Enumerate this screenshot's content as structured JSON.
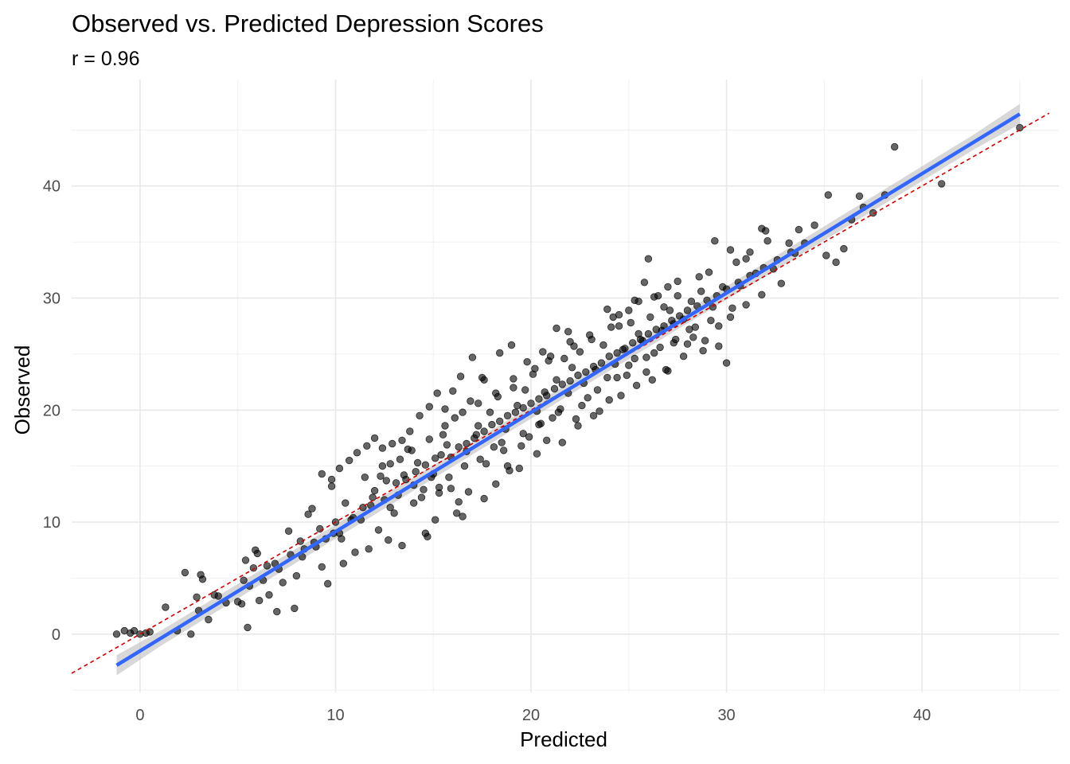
{
  "chart_data": {
    "type": "scatter",
    "title": "Observed vs. Predicted Depression Scores",
    "subtitle": "r = 0.96",
    "xlabel": "Predicted",
    "ylabel": "Observed",
    "xlim": [
      -3.5,
      47
    ],
    "ylim": [
      -5.2,
      49.5
    ],
    "x_ticks": [
      0,
      10,
      20,
      30,
      40
    ],
    "y_ticks": [
      0,
      10,
      20,
      30,
      40
    ],
    "grid": true,
    "point_color": "#000000",
    "point_opacity": 0.6,
    "fit_line": {
      "color": "#3366FF",
      "ribbon_color": "#BEBEBE",
      "intercept": -1.5,
      "slope": 1.065
    },
    "reference_line": {
      "color": "#CC0000",
      "style": "dashed",
      "intercept": 0,
      "slope": 1
    },
    "points": [
      [
        -1.2,
        0.0
      ],
      [
        -0.5,
        0.1
      ],
      [
        -0.3,
        0.3
      ],
      [
        0.3,
        0.1
      ],
      [
        1.3,
        2.4
      ],
      [
        1.9,
        0.3
      ],
      [
        2.3,
        5.5
      ],
      [
        2.6,
        0.0
      ],
      [
        2.9,
        3.3
      ],
      [
        3.1,
        5.3
      ],
      [
        3.2,
        4.9
      ],
      [
        3.5,
        1.3
      ],
      [
        3.8,
        3.5
      ],
      [
        3.0,
        2.1
      ],
      [
        5.0,
        2.9
      ],
      [
        5.2,
        2.7
      ],
      [
        5.3,
        4.8
      ],
      [
        5.4,
        6.6
      ],
      [
        5.5,
        0.6
      ],
      [
        5.8,
        5.9
      ],
      [
        5.9,
        7.5
      ],
      [
        6.0,
        7.2
      ],
      [
        6.1,
        3.0
      ],
      [
        6.3,
        4.8
      ],
      [
        6.6,
        3.5
      ],
      [
        6.9,
        6.3
      ],
      [
        7.0,
        2.0
      ],
      [
        7.3,
        4.6
      ],
      [
        7.6,
        9.2
      ],
      [
        7.9,
        2.3
      ],
      [
        8.0,
        5.2
      ],
      [
        8.2,
        8.3
      ],
      [
        8.4,
        7.6
      ],
      [
        8.6,
        10.7
      ],
      [
        8.8,
        11.2
      ],
      [
        9.0,
        7.8
      ],
      [
        9.3,
        6.0
      ],
      [
        9.5,
        8.5
      ],
      [
        9.8,
        13.2
      ],
      [
        10.0,
        10.0
      ],
      [
        10.2,
        9.0
      ],
      [
        10.5,
        11.7
      ],
      [
        10.8,
        10.2
      ],
      [
        11.0,
        7.3
      ],
      [
        11.3,
        10.2
      ],
      [
        11.5,
        14.0
      ],
      [
        11.8,
        11.5
      ],
      [
        12.0,
        12.8
      ],
      [
        12.2,
        9.3
      ],
      [
        12.4,
        15.0
      ],
      [
        12.6,
        13.7
      ],
      [
        12.8,
        11.3
      ],
      [
        13.0,
        10.8
      ],
      [
        13.2,
        12.4
      ],
      [
        13.5,
        14.2
      ],
      [
        13.7,
        16.5
      ],
      [
        14.0,
        13.3
      ],
      [
        14.2,
        15.3
      ],
      [
        14.4,
        12.2
      ],
      [
        14.7,
        8.7
      ],
      [
        14.9,
        14.0
      ],
      [
        15.1,
        15.7
      ],
      [
        15.3,
        13.1
      ],
      [
        15.5,
        17.8
      ],
      [
        15.7,
        16.9
      ],
      [
        15.9,
        13.0
      ],
      [
        16.1,
        19.3
      ],
      [
        16.3,
        11.8
      ],
      [
        16.5,
        10.5
      ],
      [
        16.7,
        16.3
      ],
      [
        16.9,
        20.8
      ],
      [
        17.1,
        17.5
      ],
      [
        17.3,
        18.6
      ],
      [
        17.5,
        22.9
      ],
      [
        17.7,
        15.2
      ],
      [
        17.9,
        19.8
      ],
      [
        18.1,
        16.7
      ],
      [
        18.3,
        21.2
      ],
      [
        18.5,
        17.1
      ],
      [
        18.7,
        18.3
      ],
      [
        18.9,
        14.6
      ],
      [
        19.1,
        22.0
      ],
      [
        19.3,
        20.4
      ],
      [
        19.5,
        16.8
      ],
      [
        19.7,
        21.8
      ],
      [
        19.9,
        17.6
      ],
      [
        20.1,
        23.2
      ],
      [
        20.3,
        19.9
      ],
      [
        20.5,
        18.8
      ],
      [
        20.7,
        21.6
      ],
      [
        20.9,
        24.4
      ],
      [
        21.1,
        19.3
      ],
      [
        21.3,
        22.7
      ],
      [
        21.5,
        20.1
      ],
      [
        21.7,
        24.6
      ],
      [
        21.9,
        21.5
      ],
      [
        22.1,
        23.8
      ],
      [
        22.3,
        19.2
      ],
      [
        22.5,
        25.2
      ],
      [
        22.7,
        22.4
      ],
      [
        22.9,
        21.1
      ],
      [
        23.1,
        26.3
      ],
      [
        23.3,
        23.6
      ],
      [
        23.5,
        19.9
      ],
      [
        23.7,
        25.8
      ],
      [
        23.9,
        22.9
      ],
      [
        24.1,
        27.4
      ],
      [
        24.3,
        24.1
      ],
      [
        24.5,
        28.5
      ],
      [
        24.7,
        25.4
      ],
      [
        24.9,
        23.1
      ],
      [
        25.1,
        27.8
      ],
      [
        25.3,
        24.6
      ],
      [
        25.5,
        29.7
      ],
      [
        25.7,
        26.2
      ],
      [
        25.9,
        23.4
      ],
      [
        26.1,
        28.3
      ],
      [
        26.3,
        25.1
      ],
      [
        26.5,
        30.2
      ],
      [
        26.7,
        27.1
      ],
      [
        26.9,
        23.6
      ],
      [
        27.1,
        28.9
      ],
      [
        27.3,
        26.0
      ],
      [
        27.5,
        31.5
      ],
      [
        27.8,
        28.1
      ],
      [
        28.0,
        25.9
      ],
      [
        28.2,
        29.7
      ],
      [
        28.4,
        27.4
      ],
      [
        28.7,
        30.6
      ],
      [
        28.9,
        26.2
      ],
      [
        29.1,
        32.3
      ],
      [
        29.3,
        29.2
      ],
      [
        29.6,
        27.5
      ],
      [
        29.8,
        31.0
      ],
      [
        30.0,
        24.2
      ],
      [
        30.2,
        28.3
      ],
      [
        30.5,
        33.2
      ],
      [
        30.7,
        31.1
      ],
      [
        31.0,
        29.4
      ],
      [
        31.2,
        34.1
      ],
      [
        31.5,
        32.2
      ],
      [
        31.8,
        30.3
      ],
      [
        32.1,
        35.1
      ],
      [
        32.4,
        32.6
      ],
      [
        32.8,
        31.3
      ],
      [
        33.2,
        34.9
      ],
      [
        33.7,
        36.1
      ],
      [
        34.5,
        36.5
      ],
      [
        35.1,
        33.8
      ],
      [
        35.6,
        33.2
      ],
      [
        36.0,
        34.4
      ],
      [
        36.4,
        37.0
      ],
      [
        37.0,
        38.1
      ],
      [
        37.5,
        37.6
      ],
      [
        38.1,
        39.2
      ],
      [
        38.6,
        43.5
      ],
      [
        41.0,
        40.2
      ],
      [
        45.0,
        45.2
      ],
      [
        35.2,
        39.2
      ],
      [
        36.8,
        39.1
      ],
      [
        33.5,
        34.0
      ],
      [
        32.0,
        36.0
      ],
      [
        31.0,
        33.5
      ],
      [
        30.2,
        34.3
      ],
      [
        29.4,
        35.1
      ],
      [
        31.8,
        36.2
      ],
      [
        27.5,
        30.2
      ],
      [
        26.0,
        33.5
      ],
      [
        25.8,
        31.4
      ],
      [
        25.3,
        29.8
      ],
      [
        26.8,
        29.2
      ],
      [
        27.3,
        27.7
      ],
      [
        28.3,
        26.5
      ],
      [
        25.5,
        26.8
      ],
      [
        23.9,
        29.0
      ],
      [
        24.2,
        28.3
      ],
      [
        22.0,
        26.1
      ],
      [
        21.3,
        27.3
      ],
      [
        21.9,
        27.0
      ],
      [
        20.6,
        25.2
      ],
      [
        19.8,
        24.3
      ],
      [
        19.0,
        25.8
      ],
      [
        18.4,
        25.1
      ],
      [
        17.6,
        22.7
      ],
      [
        17.0,
        24.7
      ],
      [
        16.4,
        23.0
      ],
      [
        16.0,
        21.7
      ],
      [
        15.6,
        20.1
      ],
      [
        15.2,
        21.5
      ],
      [
        14.8,
        20.3
      ],
      [
        14.3,
        19.5
      ],
      [
        13.8,
        18.1
      ],
      [
        13.4,
        17.3
      ],
      [
        12.9,
        17.0
      ],
      [
        12.4,
        16.6
      ],
      [
        12.0,
        17.5
      ],
      [
        11.6,
        16.8
      ],
      [
        11.1,
        16.2
      ],
      [
        10.7,
        15.5
      ],
      [
        10.2,
        14.8
      ],
      [
        9.8,
        13.8
      ],
      [
        9.3,
        14.3
      ],
      [
        9.6,
        4.5
      ],
      [
        10.4,
        6.3
      ],
      [
        11.7,
        7.6
      ],
      [
        12.7,
        8.4
      ],
      [
        13.4,
        7.9
      ],
      [
        14.6,
        9.0
      ],
      [
        15.1,
        10.2
      ],
      [
        16.2,
        10.8
      ],
      [
        16.8,
        12.7
      ],
      [
        17.6,
        12.1
      ],
      [
        18.2,
        13.4
      ],
      [
        18.8,
        15.0
      ],
      [
        19.4,
        14.8
      ],
      [
        20.3,
        16.1
      ],
      [
        20.8,
        17.3
      ],
      [
        21.6,
        17.1
      ],
      [
        22.4,
        18.6
      ],
      [
        23.2,
        19.5
      ],
      [
        24.0,
        20.9
      ],
      [
        24.6,
        21.3
      ],
      [
        25.4,
        22.2
      ],
      [
        26.2,
        22.7
      ],
      [
        27.0,
        23.5
      ],
      [
        27.8,
        24.8
      ],
      [
        28.8,
        25.3
      ],
      [
        29.6,
        25.7
      ],
      [
        -0.8,
        0.3
      ],
      [
        0.5,
        0.2
      ],
      [
        0.0,
        0.0
      ],
      [
        4.0,
        3.4
      ],
      [
        4.4,
        2.8
      ],
      [
        5.6,
        4.3
      ],
      [
        6.5,
        6.1
      ],
      [
        7.1,
        5.8
      ],
      [
        7.7,
        7.1
      ],
      [
        8.3,
        6.9
      ],
      [
        8.9,
        8.2
      ],
      [
        9.2,
        9.4
      ],
      [
        9.9,
        9.0
      ],
      [
        10.3,
        8.5
      ],
      [
        10.9,
        10.4
      ],
      [
        11.4,
        11.3
      ],
      [
        11.9,
        12.2
      ],
      [
        12.5,
        12.0
      ],
      [
        13.1,
        13.5
      ],
      [
        13.6,
        13.8
      ],
      [
        14.1,
        14.5
      ],
      [
        14.6,
        15.1
      ],
      [
        15.0,
        14.3
      ],
      [
        15.4,
        16.0
      ],
      [
        15.9,
        15.8
      ],
      [
        16.3,
        16.7
      ],
      [
        16.7,
        17.0
      ],
      [
        17.2,
        17.8
      ],
      [
        17.6,
        18.1
      ],
      [
        18.0,
        18.7
      ],
      [
        18.4,
        19.0
      ],
      [
        18.8,
        19.5
      ],
      [
        19.2,
        19.8
      ],
      [
        19.6,
        20.2
      ],
      [
        20.0,
        20.6
      ],
      [
        20.4,
        21.0
      ],
      [
        20.8,
        21.3
      ],
      [
        21.2,
        21.9
      ],
      [
        21.6,
        22.3
      ],
      [
        22.0,
        22.6
      ],
      [
        22.4,
        23.1
      ],
      [
        22.8,
        23.4
      ],
      [
        23.2,
        23.9
      ],
      [
        23.6,
        24.2
      ],
      [
        24.0,
        24.8
      ],
      [
        24.4,
        25.1
      ],
      [
        24.8,
        25.5
      ],
      [
        25.2,
        26.0
      ],
      [
        25.6,
        26.3
      ],
      [
        26.0,
        26.8
      ],
      [
        26.4,
        27.2
      ],
      [
        26.8,
        27.5
      ],
      [
        27.2,
        28.0
      ],
      [
        27.6,
        28.4
      ],
      [
        28.0,
        28.9
      ],
      [
        28.5,
        29.3
      ],
      [
        29.0,
        29.8
      ],
      [
        29.5,
        30.2
      ],
      [
        30.0,
        30.8
      ],
      [
        30.6,
        31.4
      ],
      [
        31.2,
        32.0
      ],
      [
        31.9,
        32.7
      ],
      [
        32.6,
        33.4
      ],
      [
        33.3,
        34.1
      ],
      [
        34.0,
        34.9
      ],
      [
        14.0,
        11.7
      ],
      [
        14.5,
        12.9
      ],
      [
        15.3,
        12.6
      ],
      [
        15.8,
        14.0
      ],
      [
        16.6,
        15.0
      ],
      [
        17.4,
        15.6
      ],
      [
        18.6,
        16.4
      ],
      [
        19.6,
        17.9
      ],
      [
        20.4,
        18.7
      ],
      [
        21.4,
        19.8
      ],
      [
        22.6,
        20.4
      ],
      [
        23.4,
        21.8
      ],
      [
        24.4,
        22.9
      ],
      [
        25.0,
        24.0
      ],
      [
        25.9,
        24.7
      ],
      [
        26.6,
        25.6
      ],
      [
        27.4,
        26.3
      ],
      [
        28.1,
        27.2
      ],
      [
        29.2,
        28.0
      ],
      [
        30.3,
        29.1
      ],
      [
        12.3,
        14.1
      ],
      [
        12.8,
        15.2
      ],
      [
        13.3,
        15.6
      ],
      [
        13.9,
        16.4
      ],
      [
        14.8,
        17.4
      ],
      [
        15.6,
        18.6
      ],
      [
        16.5,
        19.8
      ],
      [
        17.3,
        20.6
      ],
      [
        18.2,
        21.5
      ],
      [
        19.1,
        22.8
      ],
      [
        20.2,
        23.7
      ],
      [
        21.0,
        24.8
      ],
      [
        22.2,
        25.7
      ],
      [
        23.0,
        26.7
      ],
      [
        24.5,
        27.5
      ],
      [
        25.0,
        28.9
      ],
      [
        26.3,
        30.1
      ],
      [
        27.0,
        31.0
      ],
      [
        28.6,
        31.9
      ]
    ]
  }
}
